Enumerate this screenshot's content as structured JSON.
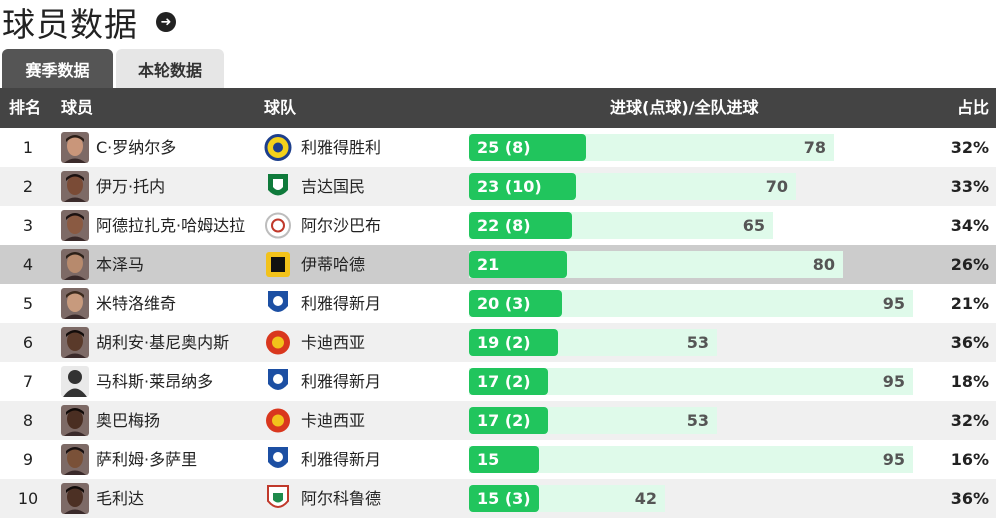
{
  "page": {
    "title": "球员数据"
  },
  "tabs": [
    {
      "label": "赛季数据",
      "active": true
    },
    {
      "label": "本轮数据",
      "active": false
    }
  ],
  "columns": {
    "rank": "排名",
    "player": "球员",
    "team": "球队",
    "goals": "进球(点球)/全队进球",
    "pct": "占比"
  },
  "colors": {
    "header_bg": "#444444",
    "bar_fill": "#21c55d",
    "bar_track": "#dffaea",
    "highlight_row": "#cccccc"
  },
  "rows": [
    {
      "rank": "1",
      "player": "C·罗纳尔多",
      "team": "利雅得胜利",
      "goals": 25,
      "goals_label": "25 (8)",
      "team_goals": 78,
      "team_goals_label": "78",
      "pct": "32%",
      "team_logo": "al-nassr-logo",
      "skin": "#c9967a",
      "hair": "#2a1d16"
    },
    {
      "rank": "2",
      "player": "伊万·托内",
      "team": "吉达国民",
      "goals": 23,
      "goals_label": "23 (10)",
      "team_goals": 70,
      "team_goals_label": "70",
      "pct": "33%",
      "team_logo": "al-ahli-logo",
      "skin": "#7a4b36",
      "hair": "#1b1110"
    },
    {
      "rank": "3",
      "player": "阿德拉扎克·哈姆达拉",
      "team": "阿尔沙巴布",
      "goals": 22,
      "goals_label": "22 (8)",
      "team_goals": 65,
      "team_goals_label": "65",
      "pct": "34%",
      "team_logo": "al-shabab-logo",
      "skin": "#8a5a42",
      "hair": "#1b1110"
    },
    {
      "rank": "4",
      "player": "本泽马",
      "team": "伊蒂哈德",
      "goals": 21,
      "goals_label": "21",
      "team_goals": 80,
      "team_goals_label": "80",
      "pct": "26%",
      "team_logo": "al-ittihad-logo",
      "skin": "#b78a6d",
      "hair": "#2b2018"
    },
    {
      "rank": "5",
      "player": "米特洛维奇",
      "team": "利雅得新月",
      "goals": 20,
      "goals_label": "20 (3)",
      "team_goals": 95,
      "team_goals_label": "95",
      "pct": "21%",
      "team_logo": "al-hilal-logo",
      "skin": "#c79a7d",
      "hair": "#3b2a1d"
    },
    {
      "rank": "6",
      "player": "胡利安·基尼奥内斯",
      "team": "卡迪西亚",
      "goals": 19,
      "goals_label": "19 (2)",
      "team_goals": 53,
      "team_goals_label": "53",
      "pct": "36%",
      "team_logo": "al-qadsiah-logo",
      "skin": "#5a3a2a",
      "hair": "#120c0a"
    },
    {
      "rank": "7",
      "player": "马科斯·莱昂纳多",
      "team": "利雅得新月",
      "goals": 17,
      "goals_label": "17 (2)",
      "team_goals": 95,
      "team_goals_label": "95",
      "pct": "18%",
      "team_logo": "al-hilal-logo",
      "skin": "#3a3a3a",
      "hair": "#2a2a2a",
      "silhouette": true
    },
    {
      "rank": "8",
      "player": "奥巴梅扬",
      "team": "卡迪西亚",
      "goals": 17,
      "goals_label": "17 (2)",
      "team_goals": 53,
      "team_goals_label": "53",
      "pct": "32%",
      "team_logo": "al-qadsiah-logo",
      "skin": "#4a2e22",
      "hair": "#100a08"
    },
    {
      "rank": "9",
      "player": "萨利姆·多萨里",
      "team": "利雅得新月",
      "goals": 15,
      "goals_label": "15",
      "team_goals": 95,
      "team_goals_label": "95",
      "pct": "16%",
      "team_logo": "al-hilal-logo",
      "skin": "#7a5138",
      "hair": "#181010"
    },
    {
      "rank": "10",
      "player": "毛利达",
      "team": "阿尔科鲁德",
      "goals": 15,
      "goals_label": "15 (3)",
      "team_goals": 42,
      "team_goals_label": "42",
      "pct": "36%",
      "team_logo": "al-kholood-logo",
      "skin": "#4c3024",
      "hair": "#100a08"
    }
  ]
}
